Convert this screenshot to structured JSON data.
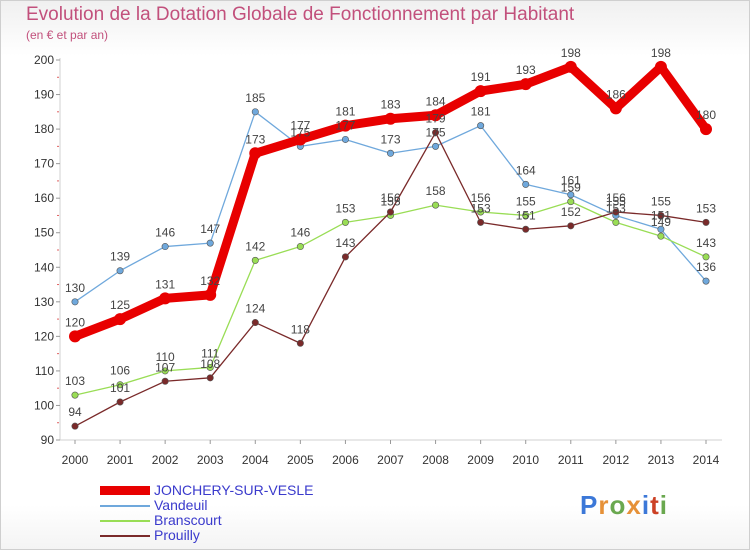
{
  "title": "Evolution de la Dotation Globale de Fonctionnement par Habitant",
  "subtitle": "(en € et par an)",
  "logo": "Proxiti",
  "chart_data": {
    "type": "line",
    "x": [
      "2000",
      "2001",
      "2002",
      "2003",
      "2004",
      "2005",
      "2006",
      "2007",
      "2008",
      "2009",
      "2010",
      "2011",
      "2012",
      "2013",
      "2014"
    ],
    "ylim": [
      90,
      200
    ],
    "yticks": [
      90,
      100,
      110,
      120,
      130,
      140,
      150,
      160,
      170,
      180,
      190,
      200
    ],
    "grid": false,
    "legend_position": "bottom-left",
    "series": [
      {
        "name": "JONCHERY-SUR-VESLE",
        "color": "#e80000",
        "values": [
          120,
          125,
          131,
          132,
          173,
          177,
          181,
          183,
          184,
          191,
          193,
          198,
          186,
          198,
          180
        ]
      },
      {
        "name": "Vandeuil",
        "color": "#6fa8dc",
        "values": [
          130,
          139,
          146,
          147,
          185,
          175,
          177,
          173,
          175,
          181,
          164,
          161,
          155,
          151,
          136
        ]
      },
      {
        "name": "Branscourt",
        "color": "#99dd55",
        "values": [
          103,
          106,
          110,
          111,
          142,
          146,
          153,
          155,
          158,
          156,
          155,
          159,
          153,
          149,
          143
        ]
      },
      {
        "name": "Prouilly",
        "color": "#7a2a2a",
        "values": [
          94,
          101,
          107,
          108,
          124,
          118,
          143,
          156,
          179,
          153,
          151,
          152,
          156,
          155,
          153
        ]
      }
    ]
  }
}
